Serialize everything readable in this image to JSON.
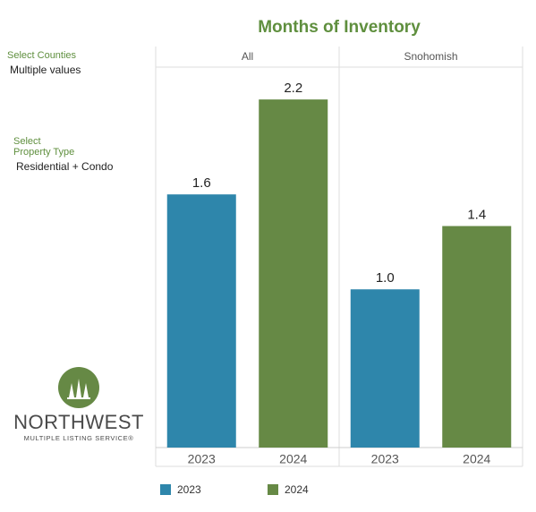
{
  "chart_data": {
    "type": "bar",
    "title": "Months of Inventory",
    "categories": [
      "All",
      "Snohomish"
    ],
    "series": [
      {
        "name": "2023",
        "color": "#2e86ab",
        "values": [
          1.6,
          1.0
        ],
        "value_labels": [
          "1.6",
          "1.0"
        ]
      },
      {
        "name": "2024",
        "color": "#668945",
        "values": [
          2.2,
          1.4
        ],
        "value_labels": [
          "2.2",
          "1.4"
        ]
      }
    ]
  },
  "filters": [
    {
      "label": [
        "Select Counties"
      ],
      "value": "Multiple values"
    },
    {
      "label": [
        "Select",
        "Property Type"
      ],
      "value": "Residential + Condo"
    }
  ],
  "logo": {
    "name": "NORTHWEST",
    "subtitle": "MULTIPLE LISTING SERVICE®"
  }
}
